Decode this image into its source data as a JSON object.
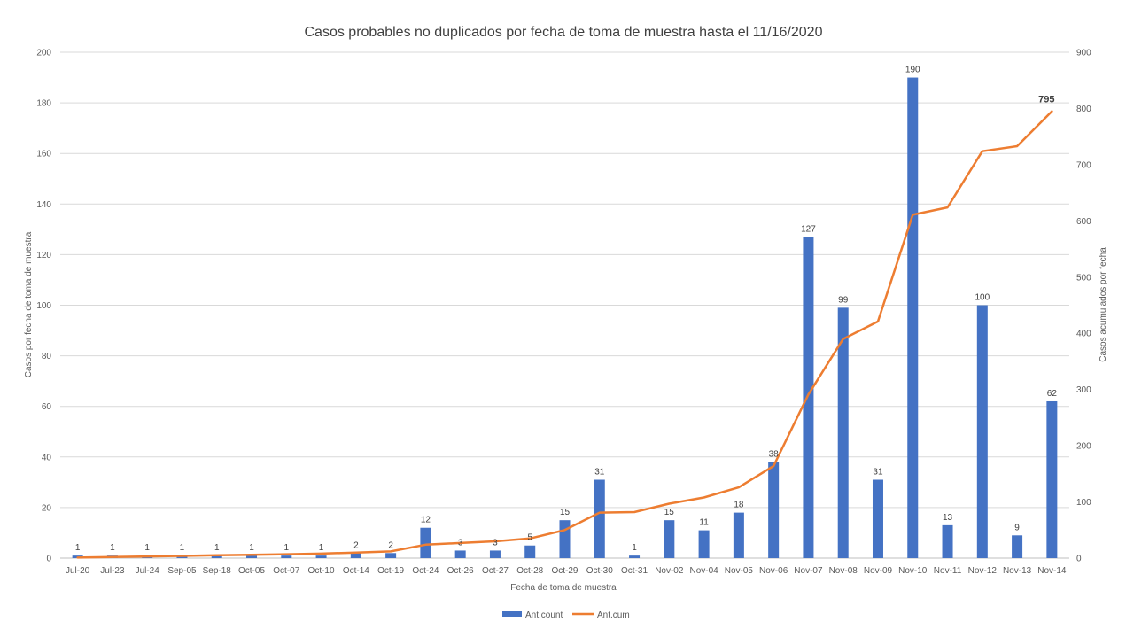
{
  "chart_data": {
    "type": "bar",
    "title": "Casos probables no duplicados por fecha de toma de muestra hasta el 11/16/2020",
    "xlabel": "Fecha de toma de muestra",
    "ylabel": "Casos por fecha de toma de muestra",
    "y2label": "Casos acumulados por fecha",
    "ylim": [
      0,
      200
    ],
    "y2lim": [
      0,
      900
    ],
    "yticks": [
      "0",
      "20",
      "40",
      "60",
      "80",
      "100",
      "120",
      "140",
      "160",
      "180",
      "200"
    ],
    "y2ticks": [
      "0",
      "100",
      "200",
      "300",
      "400",
      "500",
      "600",
      "700",
      "800",
      "900"
    ],
    "categories": [
      "Jul-20",
      "Jul-23",
      "Jul-24",
      "Sep-05",
      "Sep-18",
      "Oct-05",
      "Oct-07",
      "Oct-10",
      "Oct-14",
      "Oct-19",
      "Oct-24",
      "Oct-26",
      "Oct-27",
      "Oct-28",
      "Oct-29",
      "Oct-30",
      "Oct-31",
      "Nov-02",
      "Nov-04",
      "Nov-05",
      "Nov-06",
      "Nov-07",
      "Nov-08",
      "Nov-09",
      "Nov-10",
      "Nov-11",
      "Nov-12",
      "Nov-13",
      "Nov-14"
    ],
    "grid": "horizontal",
    "legend": "bottom",
    "series": [
      {
        "name": "Ant.count",
        "type": "bar",
        "axis": "left",
        "color": "#4472C4",
        "values": [
          1,
          1,
          1,
          1,
          1,
          1,
          1,
          1,
          2,
          2,
          12,
          3,
          3,
          5,
          15,
          31,
          1,
          15,
          11,
          18,
          38,
          127,
          99,
          31,
          190,
          13,
          100,
          9,
          62
        ],
        "labels": [
          "1",
          "1",
          "1",
          "1",
          "1",
          "1",
          "1",
          "1",
          "2",
          "2",
          "12",
          "3",
          "3",
          "5",
          "15",
          "31",
          "1",
          "15",
          "11",
          "18",
          "38",
          "127",
          "99",
          "31",
          "190",
          "13",
          "100",
          "9",
          "62"
        ]
      },
      {
        "name": "Ant.cum",
        "type": "line",
        "axis": "right",
        "color": "#ED7D31",
        "values": [
          1,
          2,
          3,
          4,
          5,
          6,
          7,
          8,
          10,
          12,
          24,
          27,
          30,
          35,
          50,
          81,
          82,
          97,
          108,
          126,
          164,
          291,
          390,
          421,
          611,
          624,
          724,
          733,
          795
        ],
        "end_label": "795"
      }
    ]
  }
}
